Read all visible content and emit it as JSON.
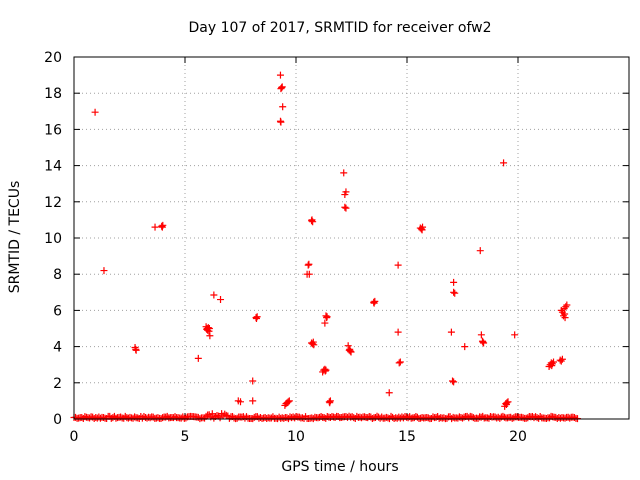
{
  "chart_data": {
    "type": "scatter",
    "title": "Day 107 of 2017, SRMTID for receiver ofw2",
    "xlabel": "GPS time / hours",
    "ylabel": "SRMTID / TECUs",
    "xlim": [
      0,
      25
    ],
    "ylim": [
      0,
      20
    ],
    "x_ticks": [
      0,
      5,
      10,
      15,
      20
    ],
    "y_ticks": [
      0,
      2,
      4,
      6,
      8,
      10,
      12,
      14,
      16,
      18,
      20
    ],
    "grid": true,
    "marker": "plus",
    "series_color": "#ff0000",
    "baseline": {
      "x_start": 0.0,
      "x_end": 22.7,
      "y_min": 0.02,
      "y_max": 0.15,
      "segments": [
        {
          "x_start": 5.9,
          "x_end": 7.0,
          "y_min": 0.05,
          "y_max": 0.3
        }
      ]
    },
    "points": [
      [
        0.95,
        16.95
      ],
      [
        1.35,
        8.2
      ],
      [
        2.75,
        3.95
      ],
      [
        2.8,
        3.8
      ],
      [
        2.78,
        3.85
      ],
      [
        3.65,
        10.6
      ],
      [
        3.95,
        10.65
      ],
      [
        4.0,
        10.7
      ],
      [
        3.98,
        10.6
      ],
      [
        5.6,
        3.35
      ],
      [
        5.95,
        5.1
      ],
      [
        5.98,
        4.95
      ],
      [
        6.0,
        5.0
      ],
      [
        6.02,
        4.9
      ],
      [
        6.05,
        5.05
      ],
      [
        6.08,
        4.85
      ],
      [
        6.1,
        5.0
      ],
      [
        6.12,
        4.6
      ],
      [
        6.3,
        6.85
      ],
      [
        6.6,
        6.6
      ],
      [
        7.4,
        1.0
      ],
      [
        7.5,
        0.95
      ],
      [
        8.05,
        1.0
      ],
      [
        8.05,
        2.1
      ],
      [
        8.2,
        5.6
      ],
      [
        8.25,
        5.65
      ],
      [
        8.22,
        5.55
      ],
      [
        9.3,
        19.0
      ],
      [
        9.35,
        18.3
      ],
      [
        9.38,
        18.35
      ],
      [
        9.32,
        18.25
      ],
      [
        9.4,
        17.25
      ],
      [
        9.3,
        16.45
      ],
      [
        9.32,
        16.4
      ],
      [
        9.5,
        0.75
      ],
      [
        9.55,
        0.85
      ],
      [
        9.6,
        0.9
      ],
      [
        9.65,
        0.95
      ],
      [
        9.7,
        1.0
      ],
      [
        10.5,
        8.0
      ],
      [
        10.55,
        8.5
      ],
      [
        10.58,
        8.55
      ],
      [
        10.6,
        8.0
      ],
      [
        10.7,
        10.95
      ],
      [
        10.75,
        10.9
      ],
      [
        10.72,
        11.0
      ],
      [
        10.7,
        4.2
      ],
      [
        10.75,
        4.15
      ],
      [
        10.8,
        4.1
      ],
      [
        10.78,
        4.25
      ],
      [
        11.2,
        2.6
      ],
      [
        11.25,
        2.7
      ],
      [
        11.3,
        2.75
      ],
      [
        11.32,
        2.65
      ],
      [
        11.35,
        2.7
      ],
      [
        11.3,
        5.3
      ],
      [
        11.35,
        5.7
      ],
      [
        11.4,
        5.65
      ],
      [
        11.38,
        5.6
      ],
      [
        11.5,
        0.95
      ],
      [
        11.55,
        1.0
      ],
      [
        11.52,
        0.9
      ],
      [
        12.15,
        13.6
      ],
      [
        12.2,
        12.4
      ],
      [
        12.25,
        12.55
      ],
      [
        12.2,
        11.7
      ],
      [
        12.25,
        11.65
      ],
      [
        12.35,
        4.05
      ],
      [
        12.4,
        3.8
      ],
      [
        12.45,
        3.75
      ],
      [
        12.42,
        3.85
      ],
      [
        12.48,
        3.7
      ],
      [
        13.5,
        6.45
      ],
      [
        13.55,
        6.5
      ],
      [
        13.52,
        6.4
      ],
      [
        14.2,
        1.45
      ],
      [
        14.6,
        8.5
      ],
      [
        14.6,
        4.8
      ],
      [
        14.65,
        3.1
      ],
      [
        14.7,
        3.15
      ],
      [
        15.6,
        10.55
      ],
      [
        15.65,
        10.5
      ],
      [
        15.7,
        10.6
      ],
      [
        15.68,
        10.45
      ],
      [
        17.0,
        4.8
      ],
      [
        17.05,
        2.1
      ],
      [
        17.1,
        2.05
      ],
      [
        17.1,
        7.55
      ],
      [
        17.1,
        7.0
      ],
      [
        17.15,
        6.95
      ],
      [
        17.6,
        4.0
      ],
      [
        18.3,
        9.3
      ],
      [
        18.35,
        4.65
      ],
      [
        18.4,
        4.3
      ],
      [
        18.45,
        4.2
      ],
      [
        18.42,
        4.25
      ],
      [
        19.35,
        14.15
      ],
      [
        19.4,
        0.7
      ],
      [
        19.45,
        0.85
      ],
      [
        19.5,
        0.9
      ],
      [
        19.55,
        0.95
      ],
      [
        19.48,
        0.8
      ],
      [
        19.85,
        4.65
      ],
      [
        21.4,
        2.9
      ],
      [
        21.45,
        3.0
      ],
      [
        21.5,
        3.1
      ],
      [
        21.55,
        3.05
      ],
      [
        21.6,
        3.15
      ],
      [
        21.52,
        2.95
      ],
      [
        21.9,
        3.25
      ],
      [
        21.95,
        3.2
      ],
      [
        22.0,
        3.3
      ],
      [
        21.95,
        6.0
      ],
      [
        22.0,
        5.9
      ],
      [
        22.05,
        5.7
      ],
      [
        22.1,
        5.8
      ],
      [
        22.15,
        6.2
      ],
      [
        22.2,
        6.3
      ],
      [
        22.12,
        5.6
      ],
      [
        22.08,
        6.1
      ]
    ]
  }
}
